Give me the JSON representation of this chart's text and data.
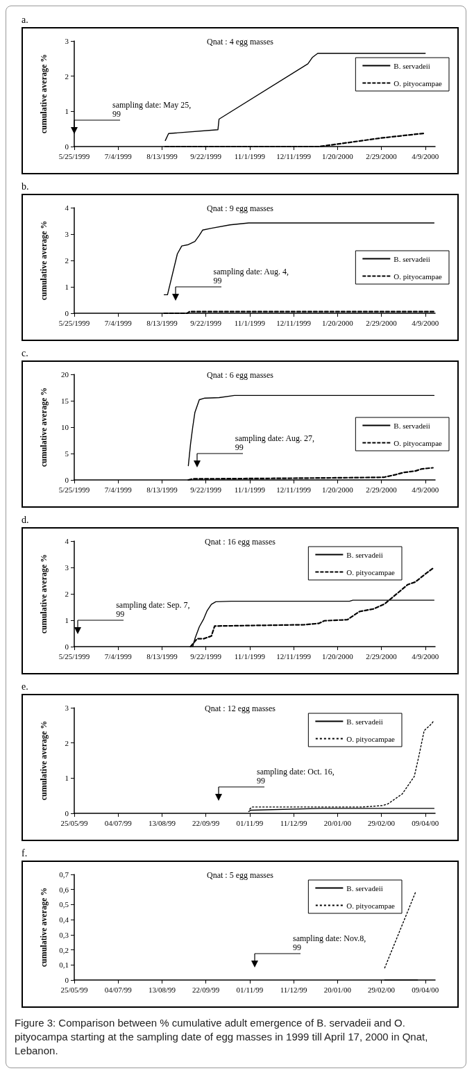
{
  "chart_data": [
    {
      "type": "line",
      "title": "a.",
      "subtitle": "Qnat : 4 egg masses",
      "ylabel": "cumulative average %",
      "legend": "top right",
      "xlim": [
        "1999-05-25",
        "2000-04-18"
      ],
      "xticks": [
        {
          "value": "1999-05-25",
          "label": "5/25/1999"
        },
        {
          "value": "1999-07-04",
          "label": "7/4/1999"
        },
        {
          "value": "1999-08-13",
          "label": "8/13/1999"
        },
        {
          "value": "1999-09-22",
          "label": "9/22/1999"
        },
        {
          "value": "1999-11-01",
          "label": "11/1/1999"
        },
        {
          "value": "1999-12-11",
          "label": "12/11/1999"
        },
        {
          "value": "2000-01-20",
          "label": "1/20/2000"
        },
        {
          "value": "2000-02-29",
          "label": "2/29/2000"
        },
        {
          "value": "2000-04-09",
          "label": "4/9/2000"
        }
      ],
      "ylim": [
        0,
        3
      ],
      "yticks": [
        0,
        1,
        2,
        3
      ],
      "series": [
        {
          "name": "B. servadeii",
          "color": "#000000",
          "line_style": "solid",
          "x": [
            "1999-08-16",
            "1999-08-19",
            "1999-10-03",
            "1999-10-04",
            "1999-12-24",
            "1999-12-28",
            "2000-01-02",
            "2000-04-09"
          ],
          "values": [
            0.17,
            0.37,
            0.48,
            0.78,
            2.35,
            2.53,
            2.65,
            2.65
          ]
        },
        {
          "name": "O. pityocampae",
          "color": "#000000",
          "line_style": "dashed",
          "x": [
            "1999-08-16",
            "2000-01-03",
            "2000-01-20",
            "2000-02-28",
            "2000-04-09"
          ],
          "values": [
            0,
            0,
            0.07,
            0.24,
            0.38
          ]
        }
      ],
      "annotations": [
        "sampling date: May 25, 99"
      ]
    },
    {
      "type": "line",
      "title": "b.",
      "subtitle": "Qnat : 9 egg masses",
      "ylabel": "cumulative average %",
      "legend": "right",
      "xlim": [
        "1999-05-25",
        "2000-04-18"
      ],
      "xticks": [
        {
          "value": "1999-05-25",
          "label": "5/25/1999"
        },
        {
          "value": "1999-07-04",
          "label": "7/4/1999"
        },
        {
          "value": "1999-08-13",
          "label": "8/13/1999"
        },
        {
          "value": "1999-09-22",
          "label": "9/22/1999"
        },
        {
          "value": "1999-11-01",
          "label": "11/1/1999"
        },
        {
          "value": "1999-12-11",
          "label": "12/11/1999"
        },
        {
          "value": "2000-01-20",
          "label": "1/20/2000"
        },
        {
          "value": "2000-02-29",
          "label": "2/29/2000"
        },
        {
          "value": "2000-04-09",
          "label": "4/9/2000"
        }
      ],
      "ylim": [
        0,
        4
      ],
      "yticks": [
        0,
        1,
        2,
        3,
        4
      ],
      "series": [
        {
          "name": "B. servadeii",
          "color": "#000000",
          "line_style": "solid",
          "x": [
            "1999-08-15",
            "1999-08-18",
            "1999-08-27",
            "1999-08-31",
            "1999-09-06",
            "1999-09-12",
            "1999-09-16",
            "1999-09-19",
            "1999-09-27",
            "1999-10-14",
            "1999-10-31",
            "2000-04-17"
          ],
          "values": [
            0.7,
            0.7,
            2.25,
            2.55,
            2.6,
            2.72,
            2.95,
            3.15,
            3.22,
            3.35,
            3.42,
            3.42
          ]
        },
        {
          "name": "O. pityocampae",
          "color": "#000000",
          "line_style": "dashed",
          "x": [
            "1999-08-15",
            "1999-09-05",
            "1999-09-07",
            "2000-04-17"
          ],
          "values": [
            0,
            0,
            0.06,
            0.06
          ]
        }
      ],
      "annotations": [
        "sampling date: Aug. 4, 99"
      ]
    },
    {
      "type": "line",
      "title": "c.",
      "subtitle": "Qnat : 6 egg masses",
      "ylabel": "cumulative average %",
      "legend": "right",
      "xlim": [
        "1999-05-25",
        "2000-04-18"
      ],
      "xticks": [
        {
          "value": "1999-05-25",
          "label": "5/25/1999"
        },
        {
          "value": "1999-07-04",
          "label": "7/4/1999"
        },
        {
          "value": "1999-08-13",
          "label": "8/13/1999"
        },
        {
          "value": "1999-09-22",
          "label": "9/22/1999"
        },
        {
          "value": "1999-11-01",
          "label": "11/1/1999"
        },
        {
          "value": "1999-12-11",
          "label": "12/11/1999"
        },
        {
          "value": "2000-01-20",
          "label": "1/20/2000"
        },
        {
          "value": "2000-02-29",
          "label": "2/29/2000"
        },
        {
          "value": "2000-04-09",
          "label": "4/9/2000"
        }
      ],
      "ylim": [
        0,
        20
      ],
      "yticks": [
        0,
        5,
        10,
        15,
        20
      ],
      "series": [
        {
          "name": "B. servadeii",
          "color": "#000000",
          "line_style": "solid",
          "x": [
            "1999-09-06",
            "1999-09-08",
            "1999-09-10",
            "1999-09-12",
            "1999-09-16",
            "1999-09-21",
            "1999-10-04",
            "1999-10-18",
            "2000-04-17"
          ],
          "values": [
            2.7,
            6.8,
            10,
            12.8,
            15.2,
            15.5,
            15.6,
            16,
            16
          ]
        },
        {
          "name": "O. pityocampae",
          "color": "#000000",
          "line_style": "dashed",
          "x": [
            "1999-09-06",
            "1999-09-10",
            "1999-11-23",
            "2000-01-18",
            "2000-03-02",
            "2000-03-13",
            "2000-03-20",
            "2000-03-31",
            "2000-04-06",
            "2000-04-16"
          ],
          "values": [
            0,
            0.2,
            0.3,
            0.4,
            0.5,
            1.0,
            1.4,
            1.7,
            2.1,
            2.3
          ]
        }
      ],
      "annotations": [
        "sampling date: Aug. 27, 99"
      ]
    },
    {
      "type": "line",
      "title": "d.",
      "subtitle": "Qnat : 16 egg masses",
      "ylabel": "cumulative average %",
      "legend": "top",
      "xlim": [
        "1999-05-25",
        "2000-04-18"
      ],
      "xticks": [
        {
          "value": "1999-05-25",
          "label": "5/25/1999"
        },
        {
          "value": "1999-07-04",
          "label": "7/4/1999"
        },
        {
          "value": "1999-08-13",
          "label": "8/13/1999"
        },
        {
          "value": "1999-09-22",
          "label": "9/22/1999"
        },
        {
          "value": "1999-11-01",
          "label": "11/1/1999"
        },
        {
          "value": "1999-12-11",
          "label": "12/11/1999"
        },
        {
          "value": "2000-01-20",
          "label": "1/20/2000"
        },
        {
          "value": "2000-02-29",
          "label": "2/29/2000"
        },
        {
          "value": "2000-04-09",
          "label": "4/9/2000"
        }
      ],
      "ylim": [
        0,
        4
      ],
      "yticks": [
        0,
        1,
        2,
        3,
        4
      ],
      "series": [
        {
          "name": "B. servadeii",
          "color": "#000000",
          "line_style": "solid",
          "x": [
            "1999-09-10",
            "1999-09-12",
            "1999-09-16",
            "1999-09-20",
            "1999-09-23",
            "1999-09-27",
            "1999-10-01",
            "1999-10-15",
            "2000-01-31",
            "2000-02-03",
            "2000-04-17"
          ],
          "values": [
            0,
            0.3,
            0.75,
            1.05,
            1.35,
            1.6,
            1.7,
            1.72,
            1.72,
            1.76,
            1.76
          ]
        },
        {
          "name": "O. pityocampae",
          "color": "#000000",
          "line_style": "dashed",
          "x": [
            "1999-09-08",
            "1999-09-14",
            "1999-09-20",
            "1999-09-27",
            "1999-09-30",
            "1999-12-21",
            "2000-01-03",
            "2000-01-08",
            "2000-01-29",
            "2000-02-09",
            "2000-02-22",
            "2000-03-03",
            "2000-03-14",
            "2000-03-24",
            "2000-03-31",
            "2000-04-09",
            "2000-04-17"
          ],
          "values": [
            0,
            0.3,
            0.3,
            0.4,
            0.78,
            0.83,
            0.88,
            0.98,
            1.02,
            1.33,
            1.43,
            1.62,
            2.0,
            2.35,
            2.45,
            2.75,
            3.0
          ]
        }
      ],
      "annotations": [
        "sampling date: Sep. 7, 99"
      ]
    },
    {
      "type": "line",
      "title": "e.",
      "subtitle": "Qnat : 12 egg masses",
      "ylabel": "cumulative average %",
      "legend": "top",
      "xlim": [
        "1999-05-25",
        "2000-04-18"
      ],
      "xticks": [
        {
          "value": "1999-05-25",
          "label": "25/05/99"
        },
        {
          "value": "1999-07-04",
          "label": "04/07/99"
        },
        {
          "value": "1999-08-13",
          "label": "13/08/99"
        },
        {
          "value": "1999-09-22",
          "label": "22/09/99"
        },
        {
          "value": "1999-11-01",
          "label": "01/11/99"
        },
        {
          "value": "1999-12-11",
          "label": "11/12/99"
        },
        {
          "value": "2000-01-20",
          "label": "20/01/00"
        },
        {
          "value": "2000-02-29",
          "label": "29/02/00"
        },
        {
          "value": "2000-04-09",
          "label": "09/04/00"
        }
      ],
      "ylim": [
        0,
        3
      ],
      "yticks": [
        0,
        1,
        2,
        3
      ],
      "series": [
        {
          "name": "B. servadeii",
          "color": "#000000",
          "line_style": "solid",
          "x": [
            "1999-10-31",
            "1999-11-02",
            "2000-01-06",
            "2000-04-17"
          ],
          "values": [
            0.05,
            0.09,
            0.14,
            0.14
          ]
        },
        {
          "name": "O. pityocampae",
          "color": "#000000",
          "line_style": "dotted",
          "x": [
            "1999-11-01",
            "1999-11-03",
            "2000-02-12",
            "2000-03-01",
            "2000-03-06",
            "2000-03-19",
            "2000-03-30",
            "2000-04-03",
            "2000-04-08",
            "2000-04-15",
            "2000-04-17"
          ],
          "values": [
            0.12,
            0.18,
            0.18,
            0.22,
            0.27,
            0.55,
            1.05,
            1.6,
            2.35,
            2.55,
            2.65
          ]
        }
      ],
      "annotations": [
        "sampling date: Oct. 16, 99"
      ]
    },
    {
      "type": "line",
      "title": "f.",
      "subtitle": "Qnat : 5 egg masses",
      "ylabel": "cumulative average %",
      "legend": "top",
      "xlim": [
        "1999-05-25",
        "2000-04-18"
      ],
      "xticks": [
        {
          "value": "1999-05-25",
          "label": "25/05/99"
        },
        {
          "value": "1999-07-04",
          "label": "04/07/99"
        },
        {
          "value": "1999-08-13",
          "label": "13/08/99"
        },
        {
          "value": "1999-09-22",
          "label": "22/09/99"
        },
        {
          "value": "1999-11-01",
          "label": "01/11/99"
        },
        {
          "value": "1999-12-11",
          "label": "11/12/99"
        },
        {
          "value": "2000-01-20",
          "label": "20/01/00"
        },
        {
          "value": "2000-02-29",
          "label": "29/02/00"
        },
        {
          "value": "2000-04-09",
          "label": "09/04/00"
        }
      ],
      "ylim": [
        0,
        0.7
      ],
      "yticks": [
        0,
        {
          "value": 0.1,
          "label": "0,1"
        },
        {
          "value": 0.2,
          "label": "0,2"
        },
        {
          "value": 0.3,
          "label": "0,3"
        },
        {
          "value": 0.4,
          "label": "0,4"
        },
        {
          "value": 0.5,
          "label": "0,5"
        },
        {
          "value": 0.6,
          "label": "0,6"
        },
        {
          "value": 0.7,
          "label": "0,7"
        }
      ],
      "series": [
        {
          "name": "B. servadeii",
          "color": "#000000",
          "line_style": "solid",
          "x": [
            "2000-03-03",
            "2000-04-02"
          ],
          "values": [
            0,
            0
          ]
        },
        {
          "name": "O. pityocampae",
          "color": "#000000",
          "line_style": "dotted",
          "x": [
            "2000-03-03",
            "2000-03-31"
          ],
          "values": [
            0.08,
            0.58
          ]
        }
      ],
      "annotations": [
        "sampling date: Nov.8, 99",
        "Figure 3: Comparison between % cumulative adult emergence of B. servadeii and O. pityocampa starting at the sampling date of egg masses in 1999 till April 17, 2000 in Qnat, Lebanon."
      ]
    }
  ]
}
